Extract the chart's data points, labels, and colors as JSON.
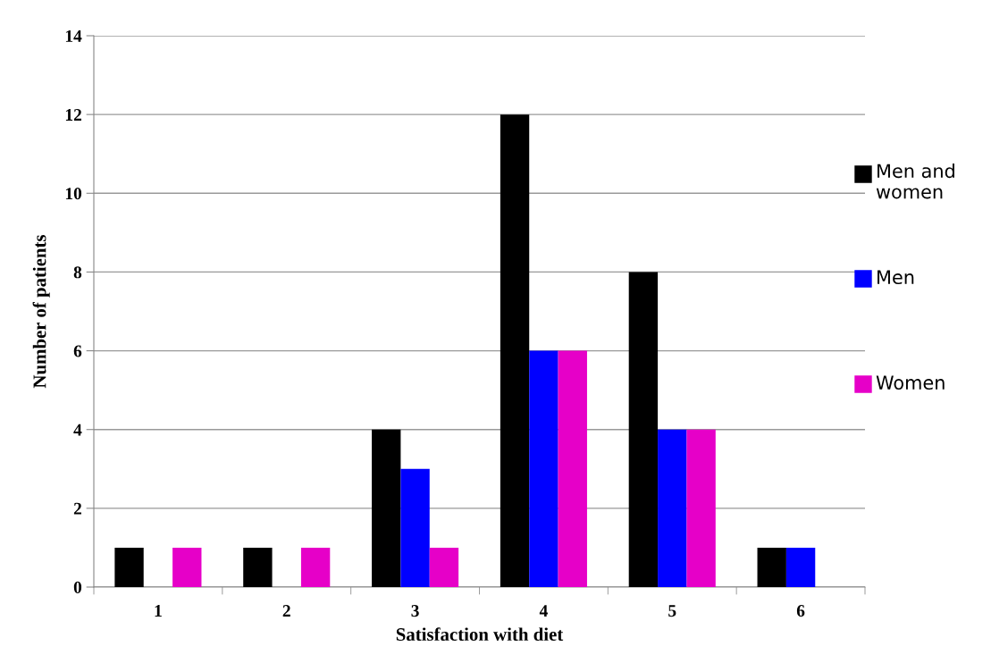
{
  "chart_data": {
    "type": "bar",
    "xlabel": "Satisfaction with diet",
    "ylabel": "Number of patients",
    "categories": [
      "1",
      "2",
      "3",
      "4",
      "5",
      "6"
    ],
    "series": [
      {
        "name": "Men and women",
        "color": "#000000",
        "values": [
          1,
          1,
          4,
          12,
          8,
          1
        ]
      },
      {
        "name": "Men",
        "color": "#0000ff",
        "values": [
          0,
          0,
          3,
          6,
          4,
          1
        ]
      },
      {
        "name": "Women",
        "color": "#e600c8",
        "values": [
          1,
          1,
          1,
          6,
          4,
          0
        ]
      }
    ],
    "ylim": [
      0,
      14
    ],
    "yticks": [
      0,
      2,
      4,
      6,
      8,
      10,
      12,
      14
    ],
    "grid": "y",
    "legend": "right"
  }
}
